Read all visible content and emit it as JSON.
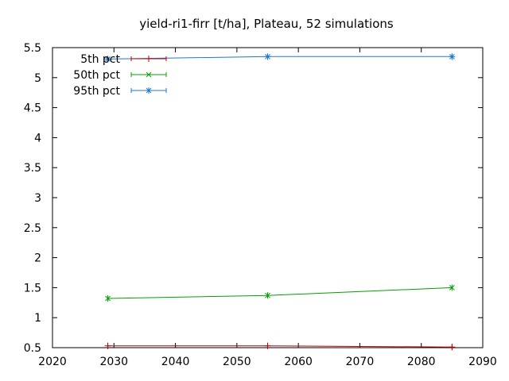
{
  "chart_data": {
    "type": "line",
    "title": "yield-ri1-firr [t/ha], Plateau, 52 simulations",
    "xlabel": "",
    "ylabel": "",
    "xlim": [
      2020,
      2090
    ],
    "ylim": [
      0.5,
      5.5
    ],
    "x_ticks": [
      "2020",
      "2030",
      "2040",
      "2050",
      "2060",
      "2070",
      "2080",
      "2090"
    ],
    "y_ticks": [
      "0.5",
      "1",
      "1.5",
      "2",
      "2.5",
      "3",
      "3.5",
      "4",
      "4.5",
      "5",
      "5.5"
    ],
    "grid": false,
    "legend_position": "top-left",
    "x": [
      2029,
      2055,
      2085
    ],
    "series": [
      {
        "name": "5th pct",
        "values": [
          0.53,
          0.53,
          0.51
        ],
        "color": "#c00000",
        "marker": "plus"
      },
      {
        "name": "50th pct",
        "values": [
          1.32,
          1.37,
          1.5
        ],
        "color": "#00a000",
        "marker": "cross"
      },
      {
        "name": "95th pct",
        "values": [
          5.31,
          5.35,
          5.35
        ],
        "color": "#1f78c8",
        "marker": "star"
      }
    ]
  }
}
